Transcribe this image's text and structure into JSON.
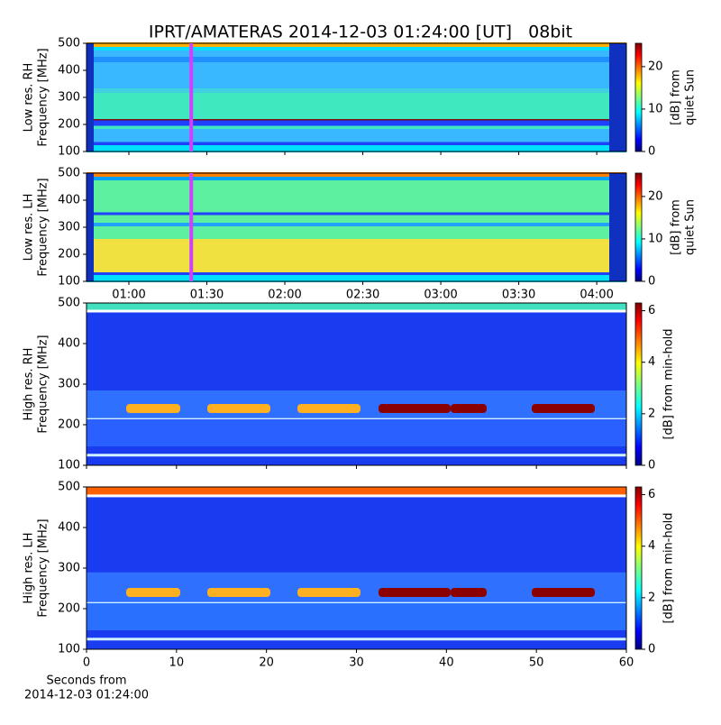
{
  "title": "IPRT/AMATERAS 2014-12-03 01:24:00 [UT]   08bit",
  "chart_data": [
    {
      "type": "heatmap",
      "ylabel": [
        "Low res. RH",
        "Frequency [MHz]"
      ],
      "ylim": [
        100,
        500
      ],
      "yticks": [
        100,
        200,
        300,
        400,
        500
      ],
      "colorbar_label": [
        "[dB] from",
        "quiet Sun"
      ],
      "clim": [
        0,
        25.5
      ],
      "cticks": [
        0,
        10,
        20
      ],
      "marker_time": 84
    },
    {
      "type": "heatmap",
      "ylabel": [
        "Low res. LH",
        "Frequency [MHz]"
      ],
      "ylim": [
        100,
        500
      ],
      "yticks": [
        100,
        200,
        300,
        400,
        500
      ],
      "colorbar_label": [
        "[dB] from",
        "quiet Sun"
      ],
      "clim": [
        0,
        25.5
      ],
      "cticks": [
        0,
        10,
        20
      ],
      "marker_time": 84,
      "xlim": [
        43.7,
        251.4
      ],
      "xticks": [
        {
          "value": 60,
          "label": "01:00"
        },
        {
          "value": 90,
          "label": "01:30"
        },
        {
          "value": 120,
          "label": "02:00"
        },
        {
          "value": 150,
          "label": "02:30"
        },
        {
          "value": 180,
          "label": "03:00"
        },
        {
          "value": 210,
          "label": "03:30"
        },
        {
          "value": 240,
          "label": "04:00"
        }
      ]
    },
    {
      "type": "heatmap",
      "ylabel": [
        "High res. RH",
        "Frequency [MHz]"
      ],
      "ylim": [
        100,
        500
      ],
      "yticks": [
        100,
        200,
        300,
        400,
        500
      ],
      "colorbar_label": [
        "[dB] from min-hold"
      ],
      "clim": [
        0,
        6.3
      ],
      "cticks": [
        0,
        2,
        4,
        6
      ]
    },
    {
      "type": "heatmap",
      "ylabel": [
        "High res. LH",
        "Frequency [MHz]"
      ],
      "ylim": [
        100,
        500
      ],
      "yticks": [
        100,
        200,
        300,
        400,
        500
      ],
      "colorbar_label": [
        "[dB] from min-hold"
      ],
      "clim": [
        0,
        6.3
      ],
      "cticks": [
        0,
        2,
        4,
        6
      ],
      "xlim": [
        0,
        60
      ],
      "xticks": [
        0,
        10,
        20,
        30,
        40,
        50,
        60
      ],
      "xlabel": [
        "Seconds from",
        "2014-12-03 01:24:00"
      ]
    }
  ]
}
